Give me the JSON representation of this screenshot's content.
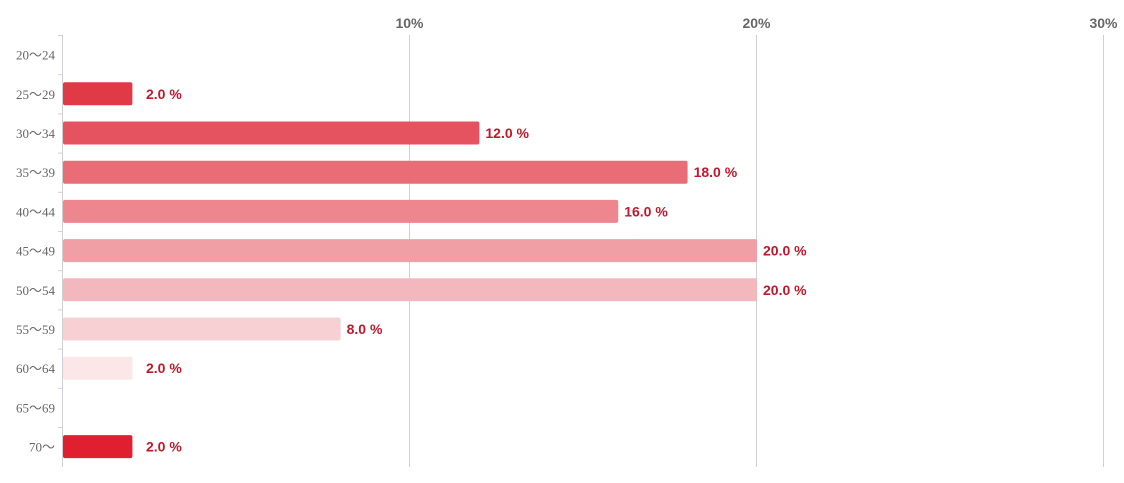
{
  "chart_data": {
    "type": "bar",
    "orientation": "horizontal",
    "categories": [
      "20〜24",
      "25〜29",
      "30〜34",
      "35〜39",
      "40〜44",
      "45〜49",
      "50〜54",
      "55〜59",
      "60〜64",
      "65〜69",
      "70〜"
    ],
    "values": [
      0,
      2.0,
      12.0,
      18.0,
      16.0,
      20.0,
      20.0,
      8.0,
      2.0,
      0,
      2.0
    ],
    "value_labels": [
      "",
      "2.0 %",
      "12.0 %",
      "18.0 %",
      "16.0 %",
      "20.0 %",
      "20.0 %",
      "8.0 %",
      "2.0 %",
      "",
      "2.0 %"
    ],
    "bar_colors": [
      "#e03a47",
      "#e03a47",
      "#e55360",
      "#e96d76",
      "#ed868e",
      "#f09fa5",
      "#f3b8bd",
      "#f7d0d3",
      "#fbe7e8",
      "#fbe7e8",
      "#e02030"
    ],
    "xticks": [
      10,
      20,
      30
    ],
    "xtick_labels": [
      "10%",
      "20%",
      "30%"
    ],
    "xlim": [
      0,
      30
    ],
    "axis_position": "top",
    "grid": true,
    "value_label_color": "#c0182b",
    "grid_color": "#cfcfd8"
  }
}
